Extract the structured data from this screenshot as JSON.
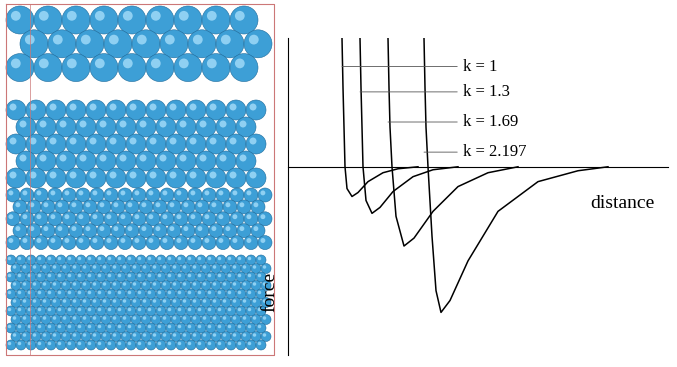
{
  "chart_data": {
    "type": "line",
    "x_label": "distance",
    "y_label": "force",
    "xlim": [
      0,
      38
    ],
    "ylim": [
      -19,
      13
    ],
    "tick_labels": false,
    "grid": false,
    "series": [
      {
        "name": "k = 1",
        "color": "#000000",
        "x": [
          5.4,
          5.5,
          5.6,
          5.7,
          5.9,
          6.4,
          7.0,
          8.0,
          9.5,
          11.0,
          13.0
        ],
        "values": [
          13,
          8,
          4,
          0,
          -2.2,
          -3.0,
          -2.6,
          -1.5,
          -0.6,
          -0.2,
          0
        ]
      },
      {
        "name": "k = 1.3",
        "color": "#000000",
        "x": [
          7.2,
          7.3,
          7.4,
          7.5,
          7.8,
          8.4,
          9.2,
          10.5,
          12.5,
          14.5,
          17.0
        ],
        "values": [
          13,
          8,
          4,
          0,
          -3.4,
          -4.7,
          -4.1,
          -2.5,
          -1.0,
          -0.3,
          0
        ]
      },
      {
        "name": "k = 1.69",
        "color": "#000000",
        "x": [
          10.0,
          10.1,
          10.2,
          10.4,
          10.8,
          11.6,
          12.6,
          14.5,
          17.0,
          20.0,
          23.0
        ],
        "values": [
          13,
          8,
          4,
          0,
          -5.0,
          -8.0,
          -7.2,
          -4.5,
          -2.0,
          -0.6,
          0
        ]
      },
      {
        "name": "k = 2.197",
        "color": "#000000",
        "x": [
          13.6,
          13.7,
          13.8,
          14.0,
          14.4,
          14.8,
          15.3,
          16.2,
          18.0,
          21.0,
          25.0,
          29.0,
          32.0
        ],
        "values": [
          13,
          8,
          4,
          0,
          -7.0,
          -12.5,
          -14.7,
          -13.5,
          -9.5,
          -4.5,
          -1.5,
          -0.4,
          0
        ]
      }
    ]
  }
}
